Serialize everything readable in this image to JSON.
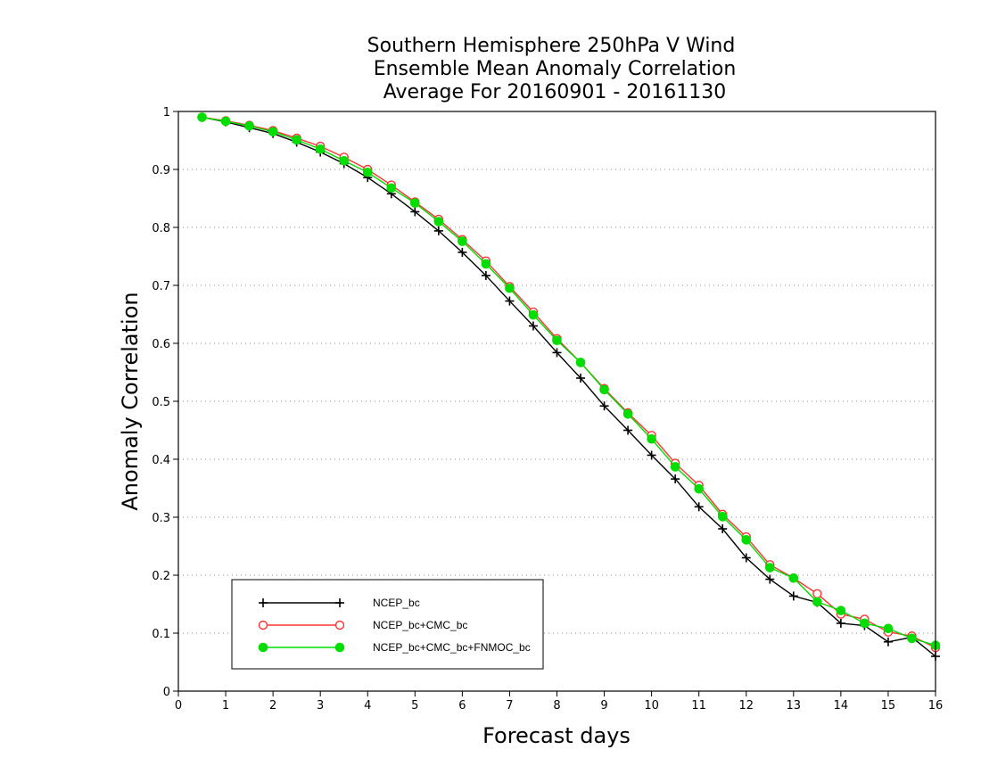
{
  "chart_data": {
    "type": "line",
    "title_lines": [
      "Southern Hemisphere 250hPa V Wind",
      "Ensemble Mean Anomaly Correlation",
      "Average For 20160901 - 20161130"
    ],
    "xlabel": "Forecast days",
    "ylabel": "Anomaly Correlation",
    "xlim": [
      0,
      16
    ],
    "ylim": [
      0,
      1
    ],
    "x_ticks": [
      0,
      1,
      2,
      3,
      4,
      5,
      6,
      7,
      8,
      9,
      10,
      11,
      12,
      13,
      14,
      15,
      16
    ],
    "y_ticks": [
      0,
      0.1,
      0.2,
      0.3,
      0.4,
      0.5,
      0.6,
      0.7,
      0.8,
      0.9,
      1
    ],
    "x_tick_labels": [
      "0",
      "1",
      "2",
      "3",
      "4",
      "5",
      "6",
      "7",
      "8",
      "9",
      "10",
      "11",
      "12",
      "13",
      "14",
      "15",
      "16"
    ],
    "y_tick_labels": [
      "0",
      "0.1",
      "0.2",
      "0.3",
      "0.4",
      "0.5",
      "0.6",
      "0.7",
      "0.8",
      "0.9",
      "1"
    ],
    "grid": "horizontal-dotted",
    "legend_position": "bottom-left",
    "x": [
      0.5,
      1,
      1.5,
      2,
      2.5,
      3,
      3.5,
      4,
      4.5,
      5,
      5.5,
      6,
      6.5,
      7,
      7.5,
      8,
      8.5,
      9,
      9.5,
      10,
      10.5,
      11,
      11.5,
      12,
      12.5,
      13,
      13.5,
      14,
      14.5,
      15,
      15.5,
      16
    ],
    "series": [
      {
        "name": "NCEP_bc",
        "color": "#000000",
        "marker": "plus",
        "values": [
          0.99,
          0.982,
          0.972,
          0.962,
          0.947,
          0.93,
          0.91,
          0.886,
          0.858,
          0.827,
          0.794,
          0.757,
          0.717,
          0.673,
          0.63,
          0.584,
          0.54,
          0.492,
          0.45,
          0.407,
          0.366,
          0.318,
          0.28,
          0.23,
          0.193,
          0.164,
          0.153,
          0.117,
          0.113,
          0.085,
          0.093,
          0.06
        ]
      },
      {
        "name": "NCEP_bc+CMC_bc",
        "color": "#ff3333",
        "marker": "open-circle",
        "values": [
          0.99,
          0.984,
          0.976,
          0.967,
          0.954,
          0.94,
          0.921,
          0.9,
          0.873,
          0.844,
          0.814,
          0.779,
          0.742,
          0.698,
          0.654,
          0.608,
          0.567,
          0.522,
          0.48,
          0.441,
          0.393,
          0.355,
          0.305,
          0.266,
          0.218,
          0.195,
          0.168,
          0.133,
          0.124,
          0.102,
          0.095,
          0.075
        ]
      },
      {
        "name": "NCEP_bc+CMC_bc+FNMOC_bc",
        "color": "#00dd00",
        "marker": "filled-circle",
        "values": [
          0.99,
          0.983,
          0.975,
          0.965,
          0.951,
          0.935,
          0.915,
          0.895,
          0.868,
          0.842,
          0.81,
          0.776,
          0.737,
          0.695,
          0.649,
          0.605,
          0.567,
          0.52,
          0.478,
          0.435,
          0.387,
          0.349,
          0.301,
          0.261,
          0.213,
          0.195,
          0.154,
          0.139,
          0.117,
          0.108,
          0.091,
          0.079
        ]
      }
    ]
  }
}
